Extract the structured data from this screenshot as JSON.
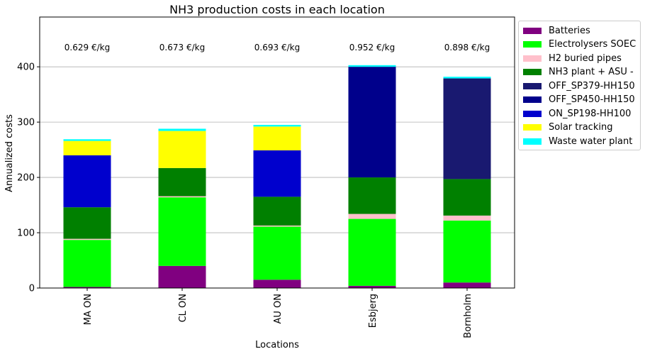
{
  "chart_data": {
    "type": "bar",
    "stacked": true,
    "title": "NH3 production costs in each location",
    "xlabel": "Locations",
    "ylabel": "Annualized costs",
    "ylim": [
      0,
      490
    ],
    "yticks": [
      0,
      100,
      200,
      300,
      400
    ],
    "grid": "horizontal",
    "legend_position": "outside right",
    "categories": [
      "MA ON",
      "CL ON",
      "AU ON",
      "Esbjerg",
      "Bornholm"
    ],
    "annotations": [
      "0.629 €/kg",
      "0.673 €/kg",
      "0.693 €/kg",
      "0.952 €/kg",
      "0.898 €/kg"
    ],
    "series": [
      {
        "name": "Batteries",
        "color": "#800080",
        "values": [
          2,
          40,
          15,
          4,
          10
        ]
      },
      {
        "name": "Electrolysers SOEC",
        "color": "#00ff00",
        "values": [
          85,
          124,
          96,
          121,
          112
        ]
      },
      {
        "name": "H2 buried pipes",
        "color": "#ffc0cb",
        "values": [
          2,
          2,
          2,
          9,
          9
        ]
      },
      {
        "name": "NH3 plant + ASU -",
        "color": "#008000",
        "values": [
          57,
          51,
          52,
          66,
          66
        ]
      },
      {
        "name": "OFF_SP379-HH150",
        "color": "#191970",
        "values": [
          0,
          0,
          0,
          0,
          182
        ]
      },
      {
        "name": "OFF_SP450-HH150",
        "color": "#00008b",
        "values": [
          0,
          0,
          0,
          200,
          0
        ]
      },
      {
        "name": "ON_SP198-HH100",
        "color": "#0000cd",
        "values": [
          94,
          0,
          84,
          0,
          0
        ]
      },
      {
        "name": "Solar tracking",
        "color": "#ffff00",
        "values": [
          26,
          67,
          43,
          0,
          0
        ]
      },
      {
        "name": "Waste water plant",
        "color": "#00ffff",
        "values": [
          3,
          4,
          3,
          3,
          3
        ]
      }
    ]
  }
}
